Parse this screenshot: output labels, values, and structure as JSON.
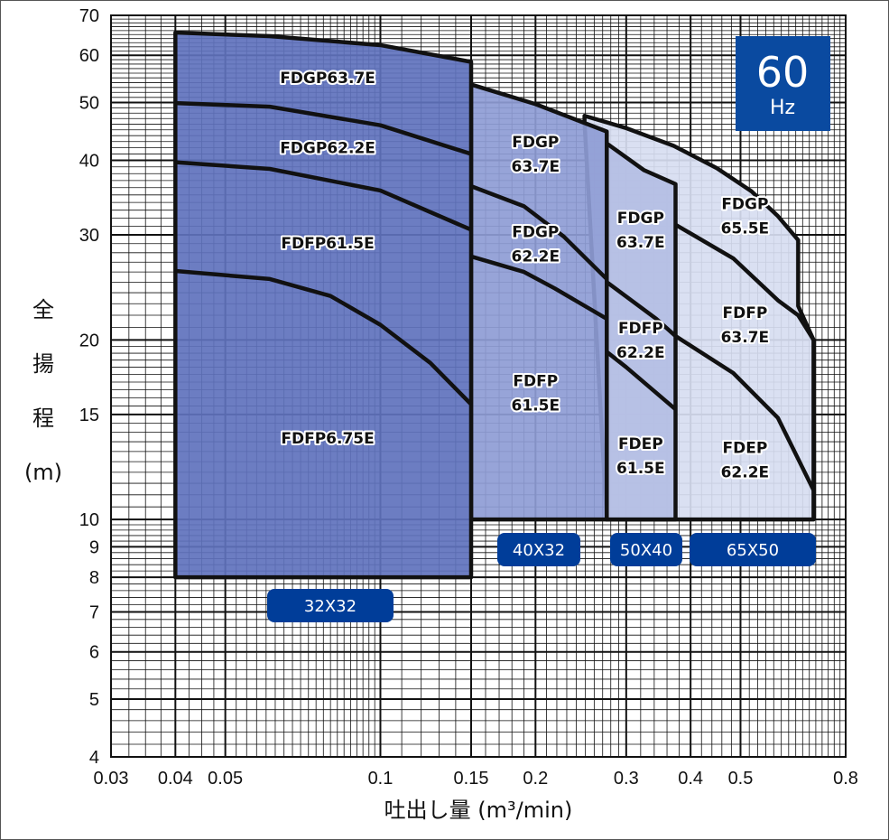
{
  "chart_data": {
    "type": "line",
    "x_scale": "log",
    "y_scale": "log",
    "xlim": [
      0.03,
      0.8
    ],
    "ylim": [
      4,
      70
    ],
    "grid": true,
    "xlabel": "吐出し量 (m³/min)",
    "ylabel": [
      "全",
      "揚",
      "程",
      "(m)"
    ],
    "x_ticks": [
      "0.03",
      "0.04",
      "0.05",
      "0.1",
      "0.15",
      "0.2",
      "0.3",
      "0.4",
      "0.5",
      "0.8"
    ],
    "y_ticks": [
      "4",
      "5",
      "6",
      "7",
      "8",
      "9",
      "10",
      "15",
      "20",
      "30",
      "40",
      "50",
      "60",
      "70"
    ],
    "frequency_badge": {
      "value": "60",
      "unit": "Hz"
    },
    "colors": {
      "32X32": "#6072bd",
      "40X32": "#8e9cd5",
      "50X40": "#b4bee4",
      "65X50": "#d7ddf1",
      "badge": "#003d99",
      "line": "#111111"
    },
    "regions": [
      {
        "name": "65X50",
        "bottom": 10,
        "boundary": [
          [
            0.249,
            46.3
          ],
          [
            0.249,
            47.5
          ],
          [
            0.3,
            45.3
          ],
          [
            0.371,
            42.3
          ],
          [
            0.45,
            38.8
          ],
          [
            0.525,
            35.5
          ],
          [
            0.59,
            32.3
          ],
          [
            0.647,
            29.4
          ],
          [
            0.647,
            22.8
          ],
          [
            0.693,
            20
          ],
          [
            0.693,
            10
          ],
          [
            0.275,
            10
          ]
        ]
      },
      {
        "name": "50X40",
        "bottom": 10,
        "boundary": [
          [
            0.275,
            42.7
          ],
          [
            0.325,
            38.5
          ],
          [
            0.374,
            36.5
          ],
          [
            0.374,
            10
          ],
          [
            0.275,
            10
          ]
        ]
      },
      {
        "name": "40X32",
        "bottom": 10,
        "boundary": [
          [
            0.15,
            53.6
          ],
          [
            0.2,
            49.7
          ],
          [
            0.275,
            44.7
          ],
          [
            0.275,
            10
          ],
          [
            0.15,
            10
          ]
        ]
      },
      {
        "name": "32X32",
        "bottom": 8,
        "boundary": [
          [
            0.04,
            65.5
          ],
          [
            0.061,
            64.6
          ],
          [
            0.1,
            62.4
          ],
          [
            0.15,
            58.5
          ],
          [
            0.15,
            8
          ],
          [
            0.04,
            8
          ]
        ]
      }
    ],
    "curves": [
      [
        [
          0.04,
          49.9
        ],
        [
          0.061,
          49.2
        ],
        [
          0.1,
          45.8
        ],
        [
          0.15,
          41.0
        ]
      ],
      [
        [
          0.04,
          39.7
        ],
        [
          0.061,
          38.7
        ],
        [
          0.1,
          35.6
        ],
        [
          0.15,
          30.6
        ]
      ],
      [
        [
          0.04,
          26.1
        ],
        [
          0.061,
          25.3
        ],
        [
          0.08,
          23.7
        ],
        [
          0.1,
          21.2
        ],
        [
          0.125,
          18.3
        ],
        [
          0.15,
          15.6
        ]
      ],
      [
        [
          0.15,
          36.2
        ],
        [
          0.19,
          33.5
        ],
        [
          0.227,
          29.8
        ],
        [
          0.275,
          25.3
        ]
      ],
      [
        [
          0.15,
          27.6
        ],
        [
          0.19,
          26.0
        ],
        [
          0.218,
          24.4
        ],
        [
          0.275,
          21.7
        ]
      ],
      [
        [
          0.275,
          25.0
        ],
        [
          0.343,
          21.7
        ],
        [
          0.374,
          20.3
        ],
        [
          0.484,
          17.6
        ],
        [
          0.591,
          14.8
        ],
        [
          0.693,
          11.2
        ]
      ],
      [
        [
          0.275,
          19.1
        ],
        [
          0.3,
          18.0
        ],
        [
          0.374,
          15.3
        ]
      ],
      [
        [
          0.374,
          31.2
        ],
        [
          0.484,
          27.4
        ],
        [
          0.591,
          23.3
        ],
        [
          0.647,
          22.0
        ],
        [
          0.693,
          20.0
        ]
      ]
    ],
    "band_labels": [
      {
        "text": [
          "FDGP63.7E"
        ],
        "x": 0.079,
        "y": 55
      },
      {
        "text": [
          "FDGP62.2E"
        ],
        "x": 0.079,
        "y": 42
      },
      {
        "text": [
          "FDFP61.5E"
        ],
        "x": 0.079,
        "y": 29.1
      },
      {
        "text": [
          "FDFP6.75E"
        ],
        "x": 0.079,
        "y": 13.7
      },
      {
        "text": [
          "FDGP",
          "63.7E"
        ],
        "x": 0.2,
        "y": 41
      },
      {
        "text": [
          "FDGP",
          "62.2E"
        ],
        "x": 0.2,
        "y": 29
      },
      {
        "text": [
          "FDFP",
          "61.5E"
        ],
        "x": 0.2,
        "y": 16.3
      },
      {
        "text": [
          "FDGP",
          "63.7E"
        ],
        "x": 0.32,
        "y": 30.6
      },
      {
        "text": [
          "FDFP",
          "62.2E"
        ],
        "x": 0.32,
        "y": 20
      },
      {
        "text": [
          "FDEP",
          "61.5E"
        ],
        "x": 0.32,
        "y": 12.8
      },
      {
        "text": [
          "FDGP",
          "65.5E"
        ],
        "x": 0.51,
        "y": 32.3
      },
      {
        "text": [
          "FDFP",
          "63.7E"
        ],
        "x": 0.51,
        "y": 21.2
      },
      {
        "text": [
          "FDEP",
          "62.2E"
        ],
        "x": 0.51,
        "y": 12.6
      }
    ],
    "size_badges": [
      "32X32",
      "40X32",
      "50X40",
      "65X50"
    ]
  }
}
